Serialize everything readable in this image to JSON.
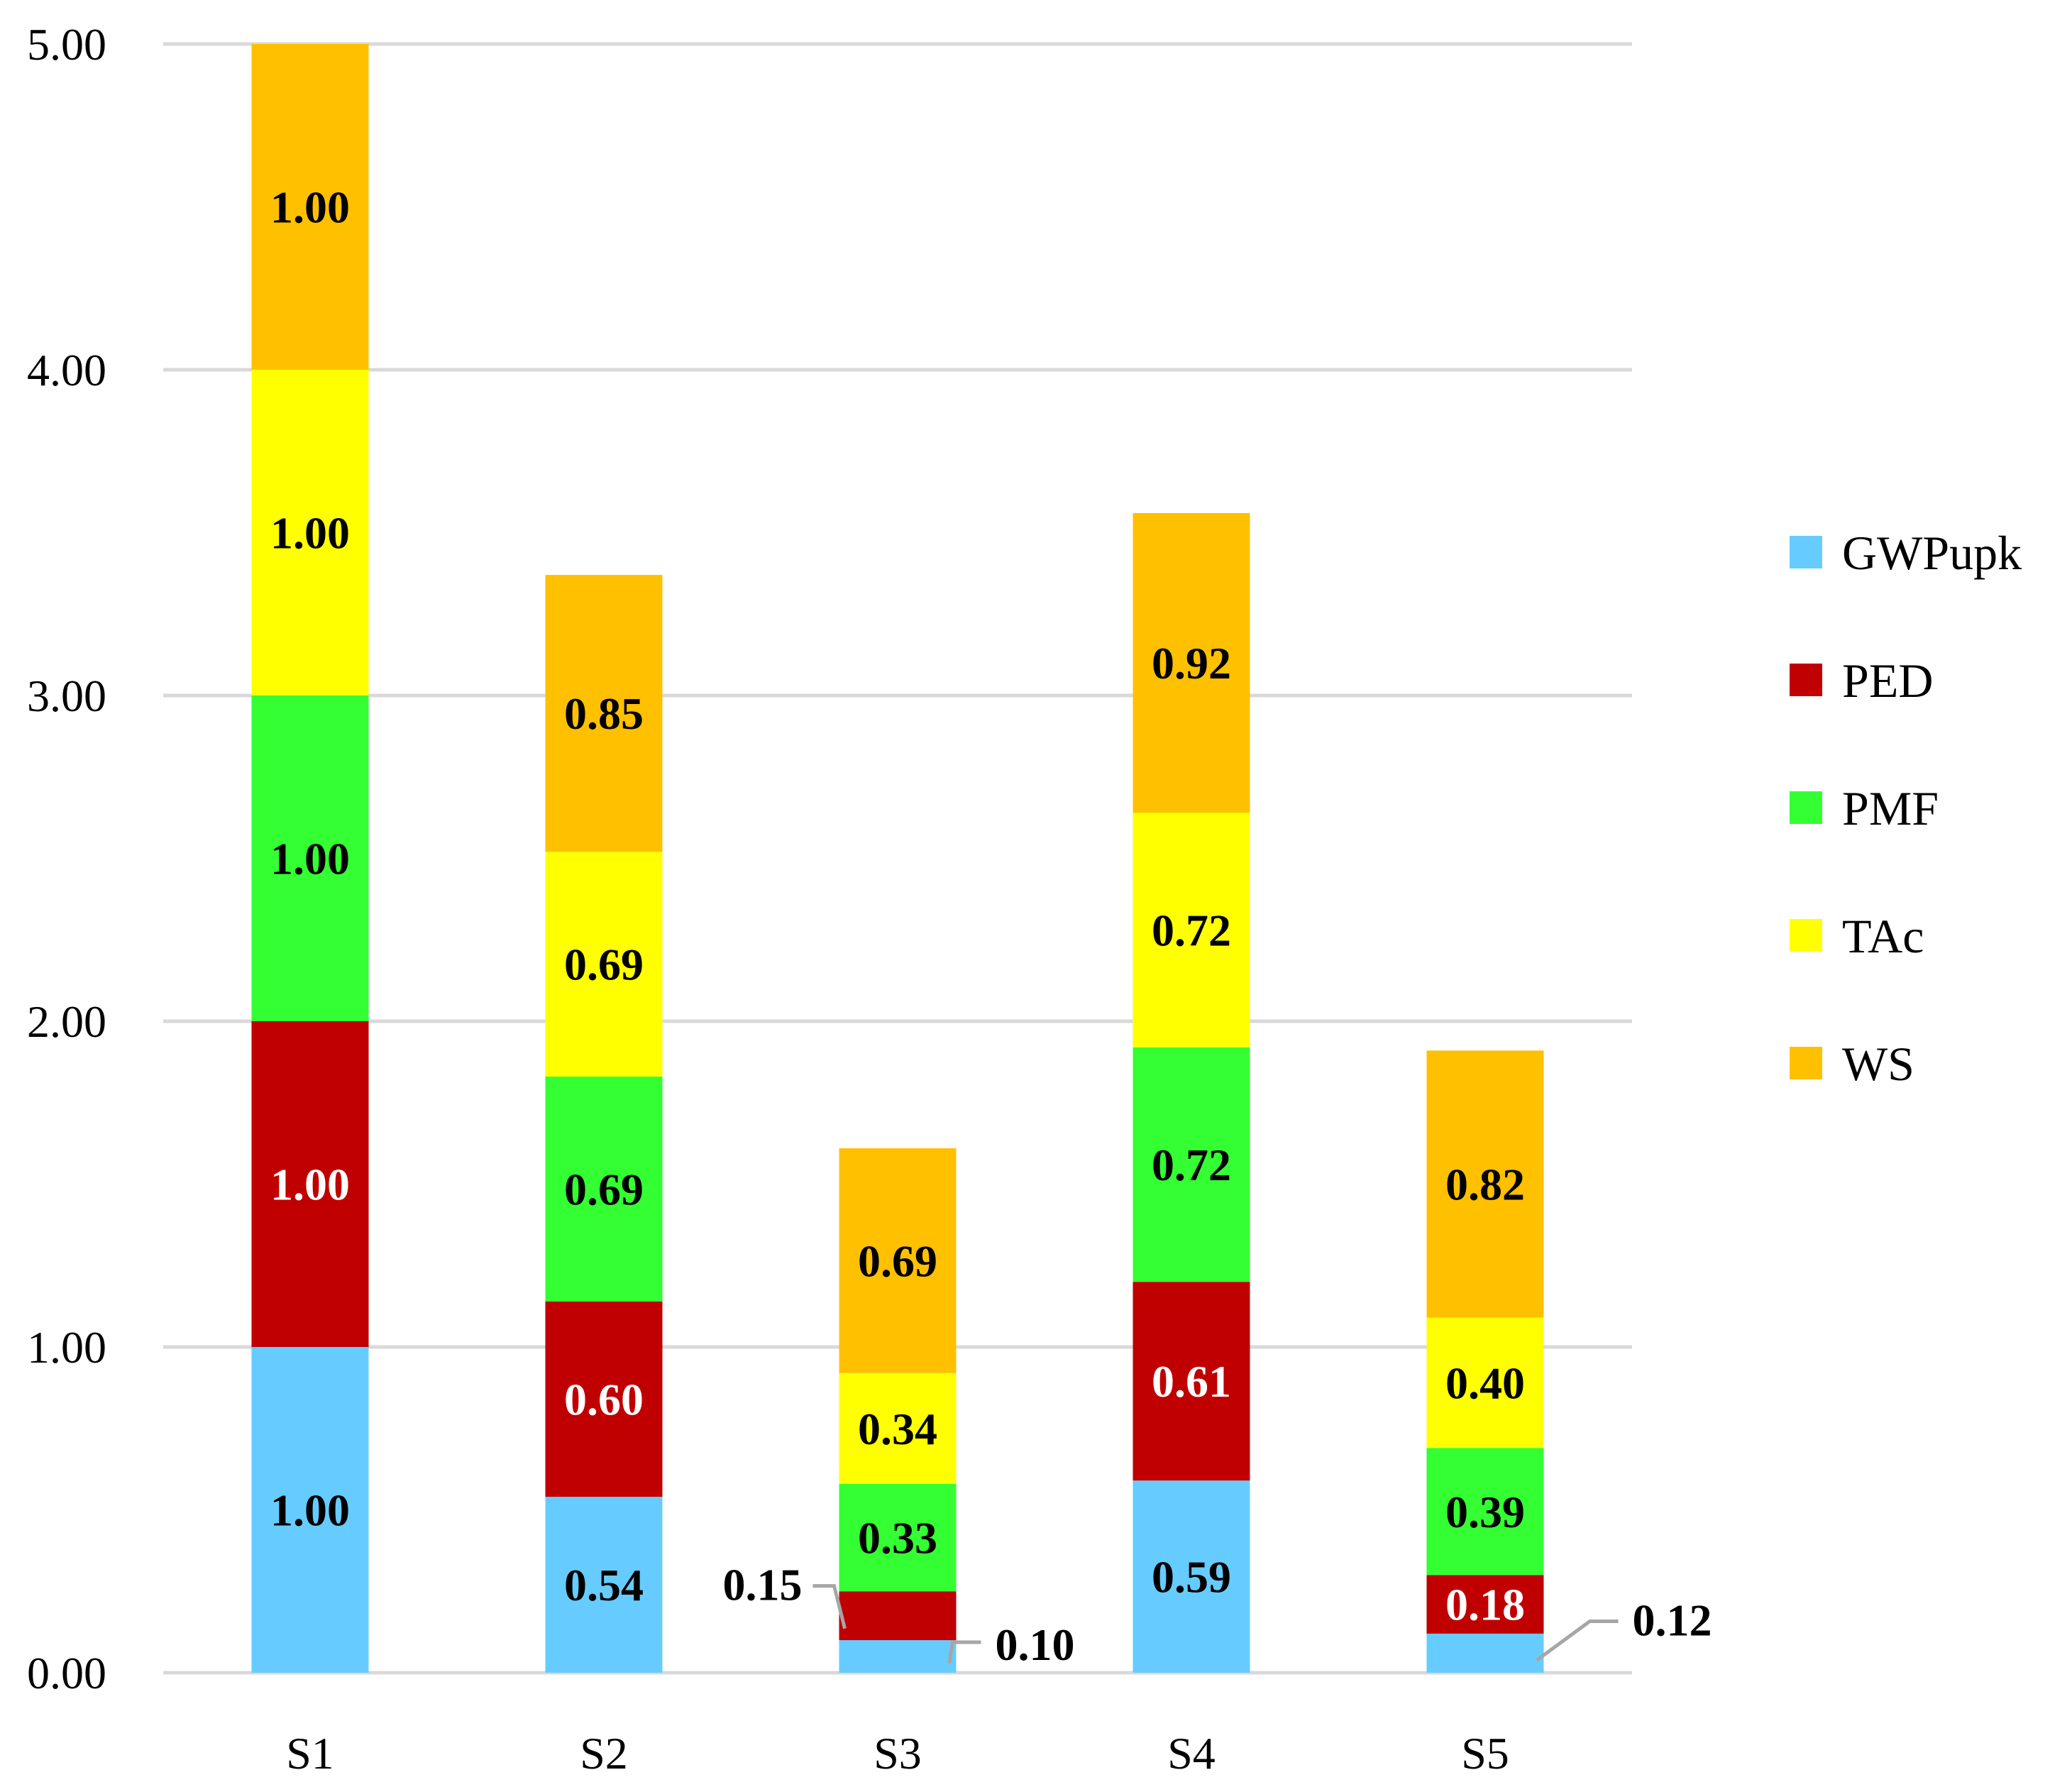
{
  "chart_data": {
    "type": "bar",
    "stacked": true,
    "title": "",
    "xlabel": "",
    "ylabel": "",
    "categories": [
      "S1",
      "S2",
      "S3",
      "S4",
      "S5"
    ],
    "ylim": [
      0,
      5
    ],
    "yticks": [
      0,
      1,
      2,
      3,
      4,
      5
    ],
    "ytick_labels": [
      "0.00",
      "1.00",
      "2.00",
      "3.00",
      "4.00",
      "5.00"
    ],
    "grid": true,
    "legend_position": "right",
    "series": [
      {
        "name": "GWPupk",
        "color": "#66CCFF",
        "label_color": "#000000",
        "values": [
          1.0,
          0.54,
          0.1,
          0.59,
          0.12
        ],
        "labels": [
          "1.00",
          "0.54",
          "0.10",
          "0.59",
          "0.12"
        ]
      },
      {
        "name": "PED",
        "color": "#C00000",
        "label_color": "#FFFFFF",
        "values": [
          1.0,
          0.6,
          0.15,
          0.61,
          0.18
        ],
        "labels": [
          "1.00",
          "0.60",
          "0.15",
          "0.61",
          "0.18"
        ]
      },
      {
        "name": "PMF",
        "color": "#33FF33",
        "label_color": "#000000",
        "values": [
          1.0,
          0.69,
          0.33,
          0.72,
          0.39
        ],
        "labels": [
          "1.00",
          "0.69",
          "0.33",
          "0.72",
          "0.39"
        ]
      },
      {
        "name": "TAc",
        "color": "#FFFF00",
        "label_color": "#000000",
        "values": [
          1.0,
          0.69,
          0.34,
          0.72,
          0.4
        ],
        "labels": [
          "1.00",
          "0.69",
          "0.34",
          "0.72",
          "0.40"
        ]
      },
      {
        "name": "WS",
        "color": "#FFC000",
        "label_color": "#000000",
        "values": [
          1.0,
          0.85,
          0.69,
          0.92,
          0.82
        ],
        "labels": [
          "1.00",
          "0.85",
          "0.69",
          "0.92",
          "0.82"
        ]
      }
    ],
    "callouts": [
      {
        "category": "S3",
        "series": "PED",
        "side": "left"
      },
      {
        "category": "S3",
        "series": "GWPupk",
        "side": "right"
      },
      {
        "category": "S5",
        "series": "GWPupk",
        "side": "right"
      }
    ]
  }
}
